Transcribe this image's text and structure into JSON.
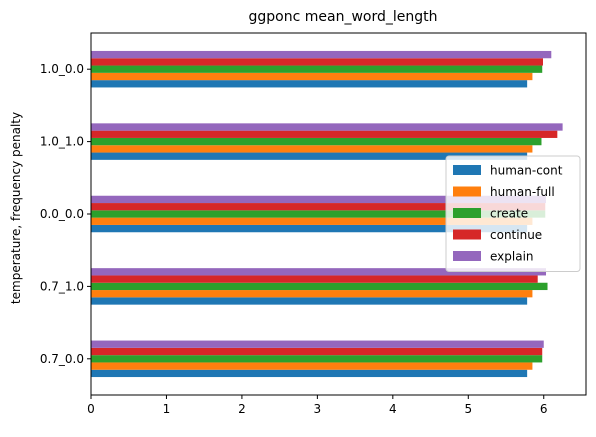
{
  "chart_data": {
    "type": "bar",
    "orientation": "horizontal",
    "title": "ggponc mean_word_length",
    "xlabel": "",
    "ylabel": "temperature, frequency penalty",
    "categories": [
      "0.7_0.0",
      "0.7_1.0",
      "0.0_0.0",
      "1.0_1.0",
      "1.0_0.0"
    ],
    "series": [
      {
        "name": "human-cont",
        "color": "#1f77b4",
        "values": [
          5.78,
          5.78,
          5.78,
          5.78,
          5.78
        ]
      },
      {
        "name": "human-full",
        "color": "#ff7f0e",
        "values": [
          5.85,
          5.85,
          5.85,
          5.85,
          5.85
        ]
      },
      {
        "name": "create",
        "color": "#2ca02c",
        "values": [
          5.98,
          6.05,
          6.02,
          5.97,
          5.98
        ]
      },
      {
        "name": "continue",
        "color": "#d62728",
        "values": [
          5.98,
          5.92,
          6.02,
          6.18,
          5.99
        ]
      },
      {
        "name": "explain",
        "color": "#9467bd",
        "values": [
          6.0,
          6.03,
          6.03,
          6.25,
          6.1
        ]
      }
    ],
    "xlim": [
      0,
      6.56
    ],
    "xticks": [
      "0",
      "1",
      "2",
      "3",
      "4",
      "5",
      "6"
    ],
    "grid": false,
    "legend_position": "center-right"
  }
}
